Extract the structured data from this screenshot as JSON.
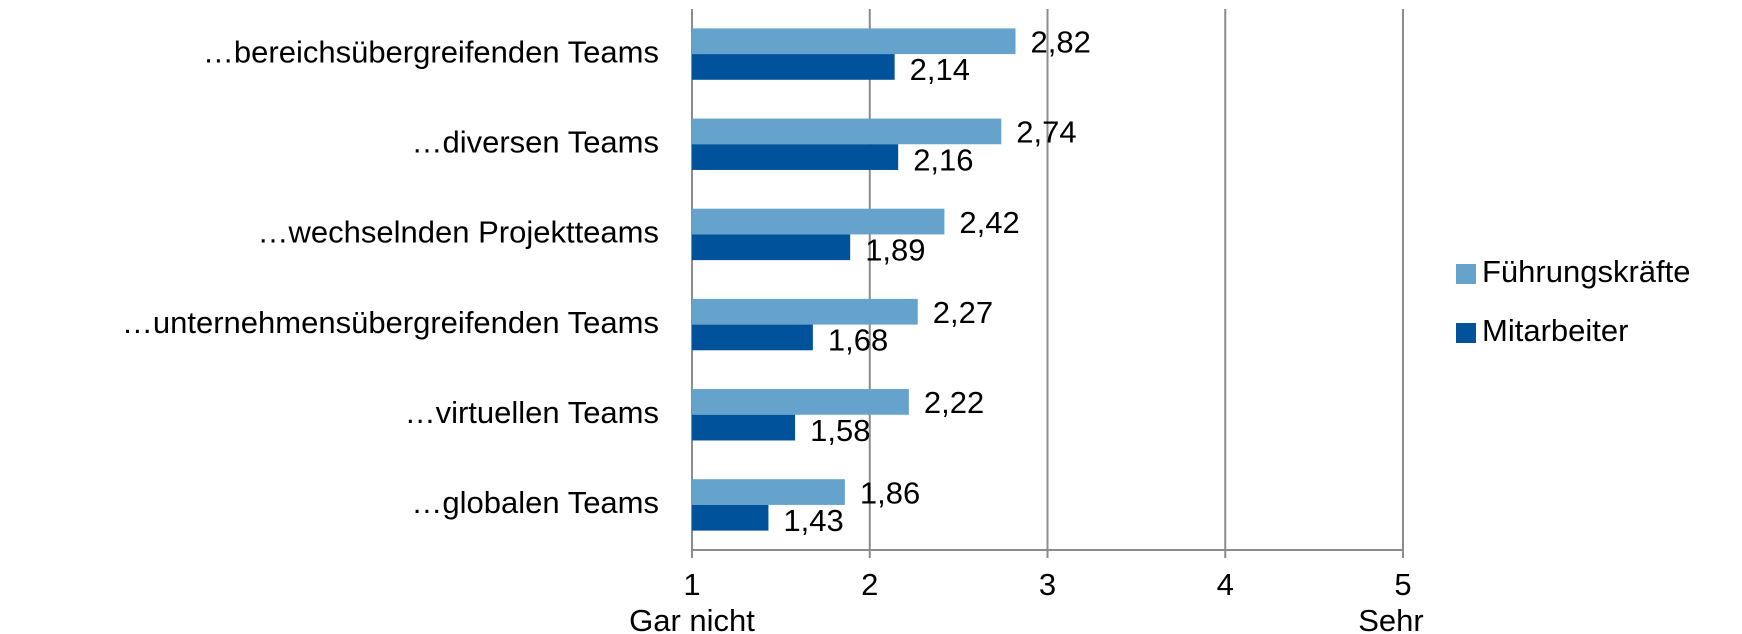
{
  "chart_data": {
    "type": "hbar",
    "categories": [
      "…bereichsübergreifenden Teams",
      "…diversen Teams",
      "…wechselnden Projektteams",
      "…unternehmensübergreifenden Teams",
      "…virtuellen Teams",
      "…globalen Teams"
    ],
    "series": [
      {
        "name": "Führungskräfte",
        "color": "#65a2cc",
        "values": [
          2.82,
          2.74,
          2.42,
          2.27,
          2.22,
          1.86
        ],
        "value_labels": [
          "2,82",
          "2,74",
          "2,42",
          "2,27",
          "2,22",
          "1,86"
        ]
      },
      {
        "name": "Mitarbeiter",
        "color": "#00539a",
        "values": [
          2.14,
          2.16,
          1.89,
          1.68,
          1.58,
          1.43
        ],
        "value_labels": [
          "2,14",
          "2,16",
          "1,89",
          "1,68",
          "1,58",
          "1,43"
        ]
      }
    ],
    "xlim": [
      1,
      5
    ],
    "xticks": [
      1,
      2,
      3,
      4,
      5
    ],
    "annotations": [
      "Gar nicht",
      "Sehr"
    ],
    "grid": true,
    "legend": "right"
  }
}
